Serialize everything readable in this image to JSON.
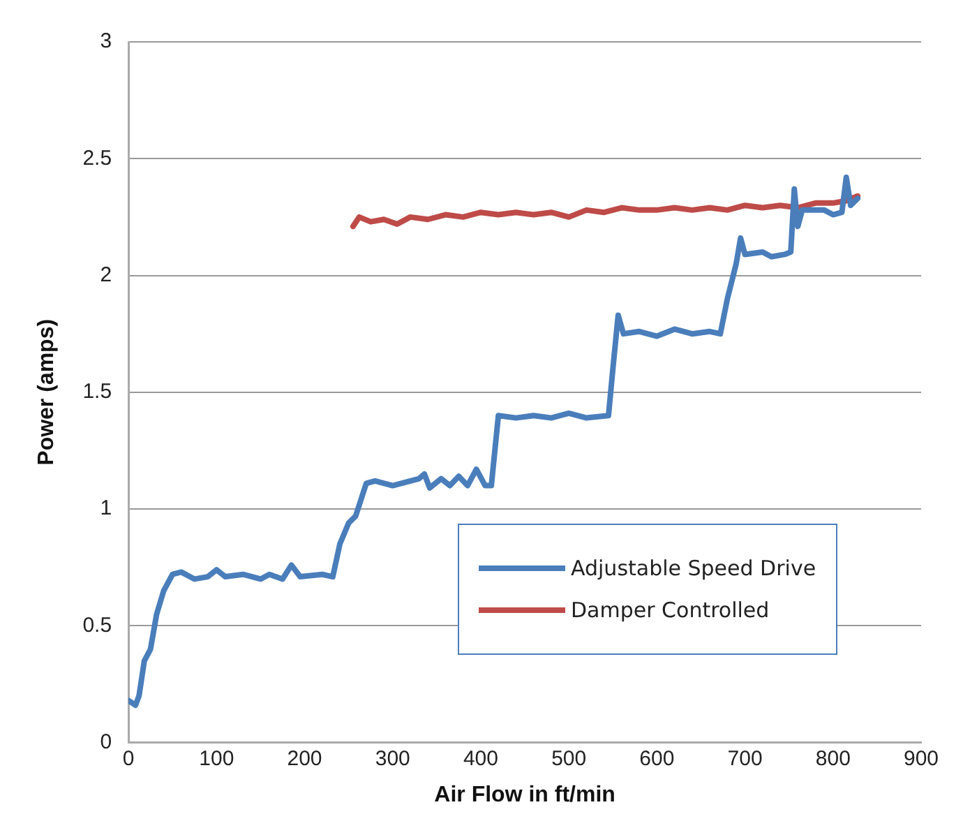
{
  "chart_data": {
    "type": "line",
    "xlabel": "Air Flow in ft/min",
    "ylabel": "Power (amps)",
    "xlim": [
      0,
      900
    ],
    "xticks": [
      0,
      100,
      200,
      300,
      400,
      500,
      600,
      700,
      800,
      900
    ],
    "ylim": [
      0,
      3
    ],
    "yticks": [
      0,
      0.5,
      1,
      1.5,
      2,
      2.5,
      3
    ],
    "grid": "y",
    "legend": "bottom right",
    "marker": "none",
    "line_style": "solid",
    "series": [
      {
        "name": "Adjustable Speed Drive",
        "color": "#4a7ebb",
        "x": [
          0,
          8,
          12,
          18,
          25,
          32,
          40,
          50,
          60,
          75,
          90,
          100,
          110,
          130,
          150,
          160,
          175,
          185,
          195,
          220,
          232,
          240,
          250,
          258,
          270,
          280,
          300,
          330,
          336,
          342,
          355,
          365,
          375,
          385,
          395,
          405,
          412,
          420,
          440,
          460,
          480,
          500,
          520,
          545,
          550,
          556,
          562,
          580,
          600,
          620,
          640,
          660,
          672,
          680,
          690,
          695,
          700,
          720,
          730,
          745,
          752,
          756,
          760,
          765,
          790,
          800,
          810,
          815,
          820,
          828
        ],
        "values": [
          0.18,
          0.16,
          0.2,
          0.35,
          0.4,
          0.55,
          0.65,
          0.72,
          0.73,
          0.7,
          0.71,
          0.74,
          0.71,
          0.72,
          0.7,
          0.72,
          0.7,
          0.76,
          0.71,
          0.72,
          0.71,
          0.85,
          0.94,
          0.97,
          1.11,
          1.12,
          1.1,
          1.13,
          1.15,
          1.09,
          1.13,
          1.1,
          1.14,
          1.1,
          1.17,
          1.1,
          1.1,
          1.4,
          1.39,
          1.4,
          1.39,
          1.41,
          1.39,
          1.4,
          1.6,
          1.83,
          1.75,
          1.76,
          1.74,
          1.77,
          1.75,
          1.76,
          1.75,
          1.9,
          2.05,
          2.16,
          2.09,
          2.1,
          2.08,
          2.09,
          2.1,
          2.37,
          2.21,
          2.28,
          2.28,
          2.26,
          2.27,
          2.42,
          2.3,
          2.33
        ]
      },
      {
        "name": "Damper Controlled",
        "color": "#be4b48",
        "x": [
          255,
          262,
          275,
          290,
          305,
          320,
          340,
          360,
          380,
          400,
          420,
          440,
          460,
          480,
          500,
          520,
          540,
          560,
          580,
          600,
          620,
          640,
          660,
          680,
          700,
          720,
          740,
          760,
          780,
          800,
          815,
          828
        ],
        "values": [
          2.21,
          2.25,
          2.23,
          2.24,
          2.22,
          2.25,
          2.24,
          2.26,
          2.25,
          2.27,
          2.26,
          2.27,
          2.26,
          2.27,
          2.25,
          2.28,
          2.27,
          2.29,
          2.28,
          2.28,
          2.29,
          2.28,
          2.29,
          2.28,
          2.3,
          2.29,
          2.3,
          2.29,
          2.31,
          2.31,
          2.32,
          2.34
        ]
      }
    ]
  }
}
